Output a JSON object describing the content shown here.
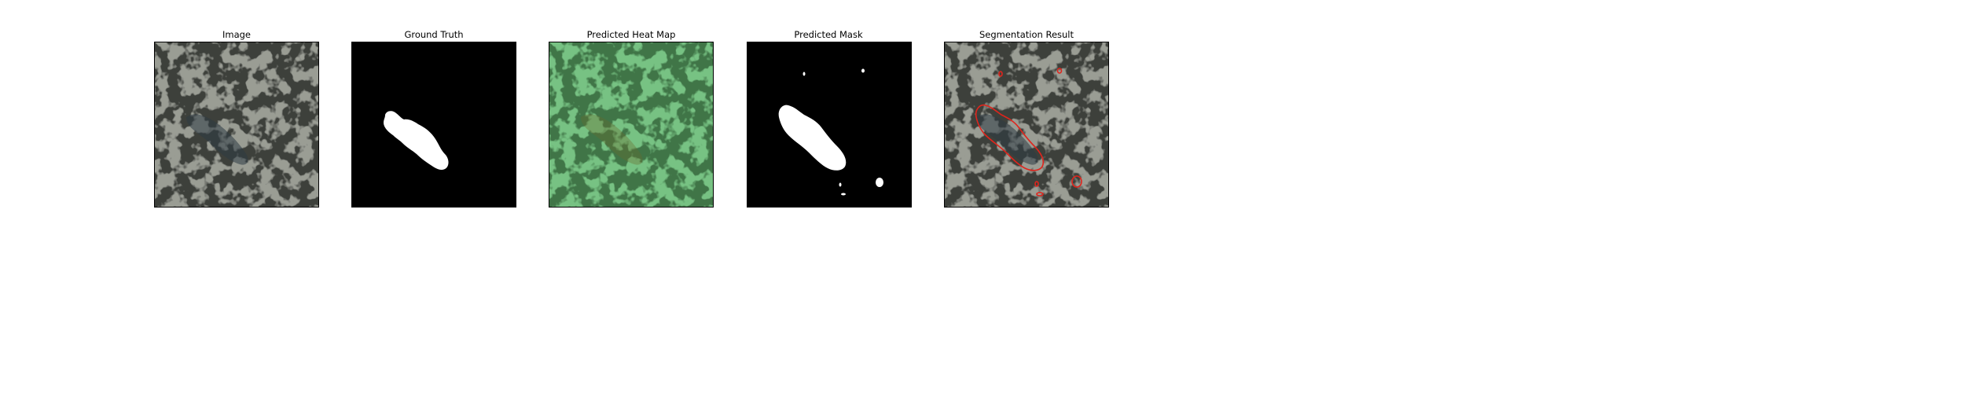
{
  "figure": {
    "panels": [
      {
        "title": "Image"
      },
      {
        "title": "Ground Truth"
      },
      {
        "title": "Predicted Heat Map"
      },
      {
        "title": "Predicted Mask"
      },
      {
        "title": "Segmentation Result"
      }
    ]
  },
  "colors": {
    "background": "#ffffff",
    "texture_light": "#9a9d94",
    "texture_dark": "#3d3f3b",
    "mask_white": "#ffffff",
    "mask_black": "#000000",
    "heatmap_green": "#6fbf7a",
    "contour_red": "#e0241c"
  }
}
